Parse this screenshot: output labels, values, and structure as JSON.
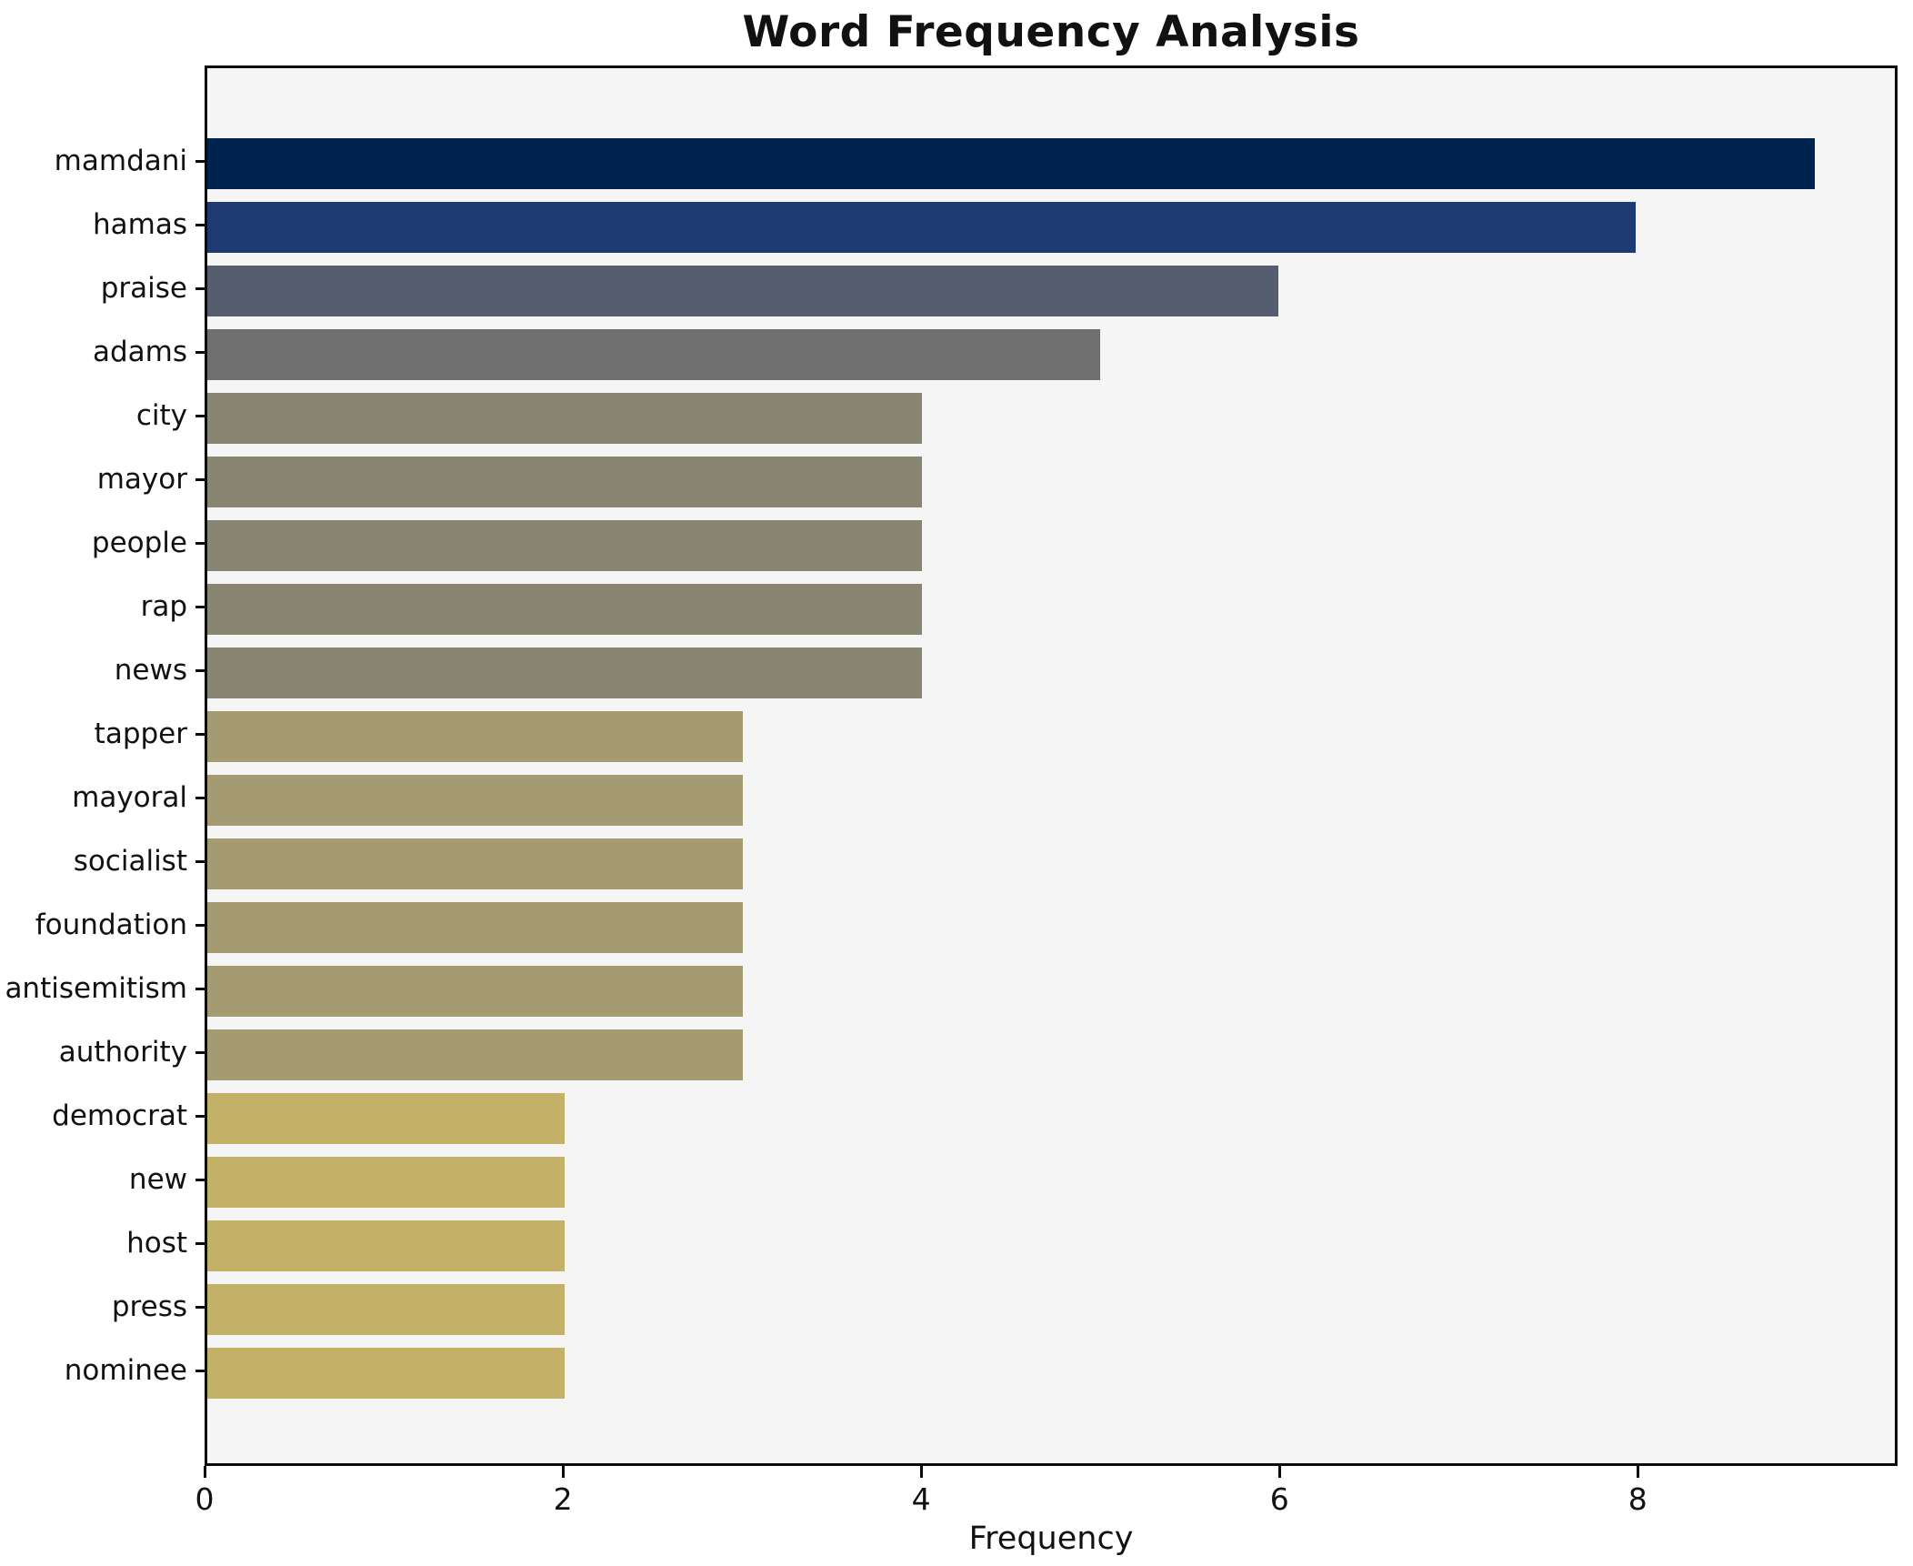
{
  "title": "Word Frequency Analysis",
  "chart_data": {
    "type": "bar",
    "orientation": "horizontal",
    "title": "Word Frequency Analysis",
    "xlabel": "Frequency",
    "ylabel": "",
    "categories": [
      "mamdani",
      "hamas",
      "praise",
      "adams",
      "city",
      "mayor",
      "people",
      "rap",
      "news",
      "tapper",
      "mayoral",
      "socialist",
      "foundation",
      "antisemitism",
      "authority",
      "democrat",
      "new",
      "host",
      "press",
      "nominee"
    ],
    "values": [
      9,
      8,
      6,
      5,
      4,
      4,
      4,
      4,
      4,
      3,
      3,
      3,
      3,
      3,
      3,
      2,
      2,
      2,
      2,
      2
    ],
    "bar_colors": [
      "#00224e",
      "#1e3a72",
      "#565d6e",
      "#6f6f70",
      "#888673",
      "#888673",
      "#888673",
      "#888673",
      "#888673",
      "#a49b72",
      "#a49b72",
      "#a49b72",
      "#a49b72",
      "#a49b72",
      "#a49b72",
      "#c2b166",
      "#c2b166",
      "#c2b166",
      "#c2b166",
      "#c2b166"
    ],
    "x_ticks": [
      0,
      2,
      4,
      6,
      8
    ],
    "xlim": [
      0,
      9.45
    ],
    "grid": false,
    "legend": "none",
    "plot_background": "#f5f5f6",
    "figure_background": "#ffffff",
    "spine_color": "#0a0a0a",
    "text_color": "#111111"
  }
}
